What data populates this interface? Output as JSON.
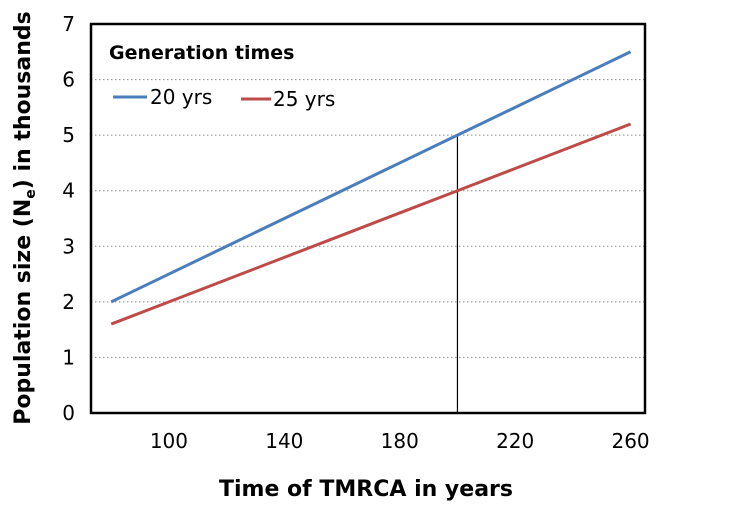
{
  "chart_data": {
    "type": "line",
    "title": "",
    "xlabel": "Time of TMRCA in years",
    "ylabel": "Population size (N",
    "ylabel_sub": "e",
    "ylabel_tail": ") in thousands",
    "xlim": [
      73,
      265
    ],
    "ylim": [
      0,
      7
    ],
    "xticks": [
      100,
      140,
      180,
      220,
      260
    ],
    "yticks": [
      0,
      1,
      2,
      3,
      4,
      5,
      6,
      7
    ],
    "grid": "horizontal dotted",
    "legend_title": "Generation times",
    "legend_position": "top-left",
    "series": [
      {
        "name": "20 yrs",
        "color": "#4a7ebb",
        "x": [
          80,
          100,
          120,
          140,
          160,
          180,
          200,
          220,
          240,
          260
        ],
        "y": [
          2.0,
          2.5,
          3.0,
          3.5,
          4.0,
          4.5,
          5.0,
          5.5,
          6.0,
          6.5
        ]
      },
      {
        "name": "25 yrs",
        "color": "#be4b48",
        "x": [
          80,
          100,
          120,
          140,
          160,
          180,
          200,
          220,
          240,
          260
        ],
        "y": [
          1.6,
          2.0,
          2.4,
          2.8,
          3.2,
          3.6,
          4.0,
          4.4,
          4.8,
          5.2
        ]
      }
    ],
    "reference_line": {
      "x": 200,
      "y_top": 5.0,
      "color": "#000000"
    }
  }
}
